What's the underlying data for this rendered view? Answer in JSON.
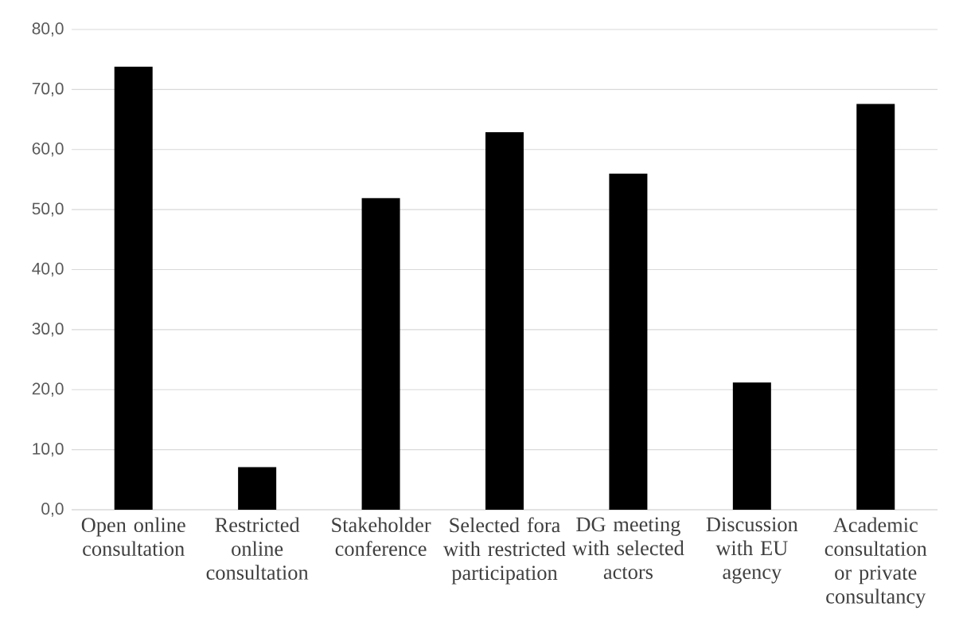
{
  "chart_data": {
    "type": "bar",
    "categories": [
      "Open online consultation",
      "Restricted online consultation",
      "Stakeholder conference",
      "Selected fora with restricted participation",
      "DG meeting with selected actors",
      "Discussion with EU agency",
      "Academic consultation or private consultancy"
    ],
    "values": [
      73.8,
      7.1,
      51.9,
      62.9,
      56.0,
      21.2,
      67.6
    ],
    "color": "#000000",
    "ylim": [
      0,
      80
    ],
    "yticks": [
      {
        "value": 0,
        "label": "0,0"
      },
      {
        "value": 10,
        "label": "10,0"
      },
      {
        "value": 20,
        "label": "20,0"
      },
      {
        "value": 30,
        "label": "30,0"
      },
      {
        "value": 40,
        "label": "40,0"
      },
      {
        "value": 50,
        "label": "50,0"
      },
      {
        "value": 60,
        "label": "60,0"
      },
      {
        "value": 70,
        "label": "70,0"
      },
      {
        "value": 80,
        "label": "80,0"
      }
    ],
    "grid": "y"
  }
}
